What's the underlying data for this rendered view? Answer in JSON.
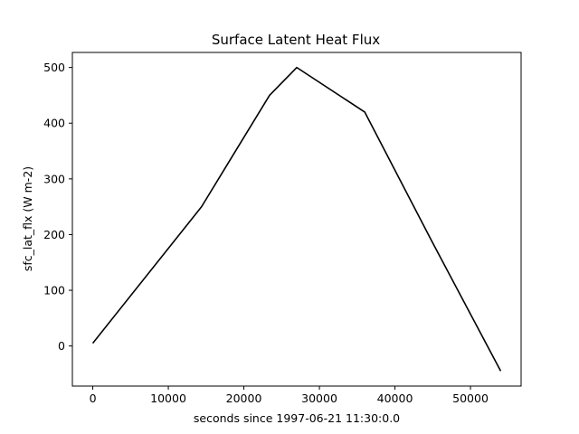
{
  "chart_data": {
    "type": "line",
    "title": "Surface Latent Heat Flux",
    "xlabel": "seconds since 1997-06-21 11:30:0.0",
    "ylabel": "sfc_lat_flx (W m-2)",
    "xlim": [
      -2700,
      56700
    ],
    "ylim": [
      -72,
      527
    ],
    "xticks": [
      0,
      10000,
      20000,
      30000,
      40000,
      50000
    ],
    "yticks": [
      0,
      100,
      200,
      300,
      400,
      500
    ],
    "grid": false,
    "line_color": "#000000",
    "series": [
      {
        "x": [
          0,
          14400,
          23400,
          27000,
          36000,
          45000,
          54000
        ],
        "y": [
          5,
          250,
          450,
          500,
          420,
          185,
          -45
        ]
      }
    ]
  }
}
